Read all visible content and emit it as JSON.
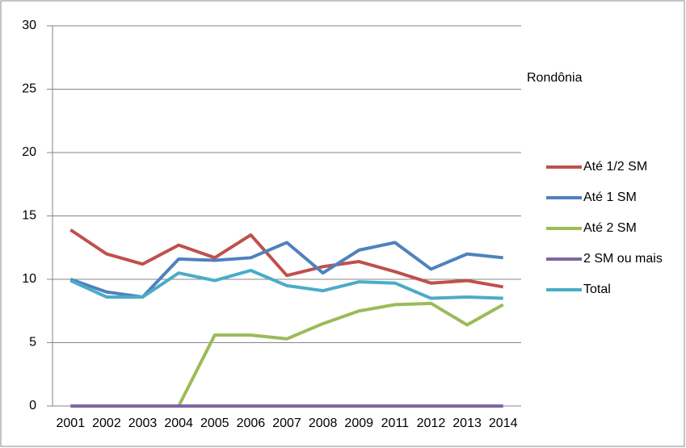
{
  "chart_data": {
    "type": "line",
    "title": "Rondônia",
    "categories": [
      "2001",
      "2002",
      "2003",
      "2004",
      "2005",
      "2006",
      "2007",
      "2008",
      "2009",
      "2011",
      "2012",
      "2013",
      "2014"
    ],
    "series": [
      {
        "name": "Até 1/2 SM",
        "color": "#c0504d",
        "values": [
          13.9,
          12.0,
          11.2,
          12.7,
          11.7,
          13.5,
          10.3,
          11.0,
          11.4,
          10.6,
          9.7,
          9.9,
          9.4
        ]
      },
      {
        "name": "Até 1 SM",
        "color": "#4f81bd",
        "values": [
          10.0,
          9.0,
          8.6,
          11.6,
          11.5,
          11.7,
          12.9,
          10.5,
          12.3,
          12.9,
          10.8,
          12.0,
          11.7
        ]
      },
      {
        "name": "Até 2 SM",
        "color": "#9bbb59",
        "values": [
          0,
          0,
          0,
          0,
          5.6,
          5.6,
          5.3,
          6.5,
          7.5,
          8.0,
          8.1,
          6.4,
          8.0
        ]
      },
      {
        "name": "2 SM ou mais",
        "color": "#8064a2",
        "values": [
          0,
          0,
          0,
          0,
          0,
          0,
          0,
          0,
          0,
          0,
          0,
          0,
          0
        ]
      },
      {
        "name": "Total",
        "color": "#4bacc6",
        "values": [
          9.9,
          8.6,
          8.6,
          10.5,
          9.9,
          10.7,
          9.5,
          9.1,
          9.8,
          9.7,
          8.5,
          8.6,
          8.5
        ]
      }
    ],
    "ylim": [
      0,
      30
    ],
    "yticks": [
      0,
      5,
      10,
      15,
      20,
      25,
      30
    ],
    "grid": true,
    "legend": "right"
  }
}
